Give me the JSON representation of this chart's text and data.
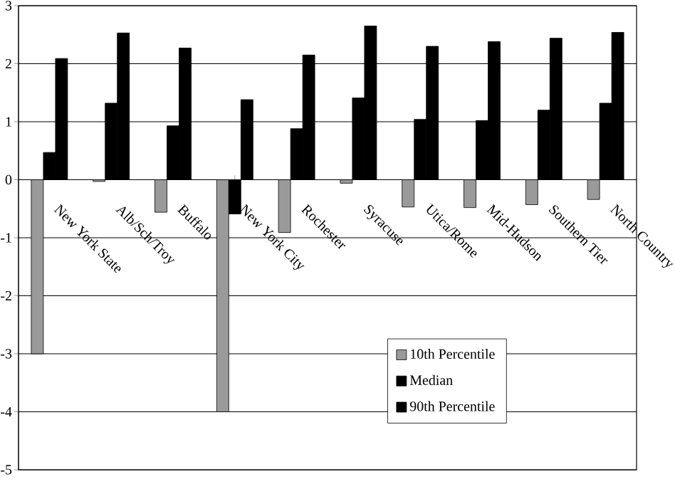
{
  "chart_data": {
    "type": "bar",
    "categories": [
      "New York State",
      "Alb/Sch/Troy",
      "Buffalo",
      "New York City",
      "Rochester",
      "Syracuse",
      "Utica/Rome",
      "Mid-Hudson",
      "Southern Tier",
      "North Country"
    ],
    "series": [
      {
        "name": "10th Percentile",
        "color": "#9a9a9a",
        "values": [
          -3.0,
          -0.03,
          -0.56,
          -4.0,
          -0.91,
          -0.06,
          -0.47,
          -0.48,
          -0.43,
          -0.34
        ]
      },
      {
        "name": "Median",
        "color": "#000000",
        "values": [
          0.47,
          1.32,
          0.93,
          -0.59,
          0.88,
          1.41,
          1.04,
          1.02,
          1.2,
          1.32
        ]
      },
      {
        "name": "90th Percentile",
        "color": "#000000",
        "values": [
          2.09,
          2.53,
          2.27,
          1.38,
          2.15,
          2.65,
          2.3,
          2.38,
          2.44,
          2.54
        ]
      }
    ],
    "ylim": [
      -5,
      3
    ],
    "yticks": [
      -5,
      -4,
      -3,
      -2,
      -1,
      0,
      1,
      2,
      3
    ],
    "grid": "y",
    "legend": "bottom right"
  }
}
